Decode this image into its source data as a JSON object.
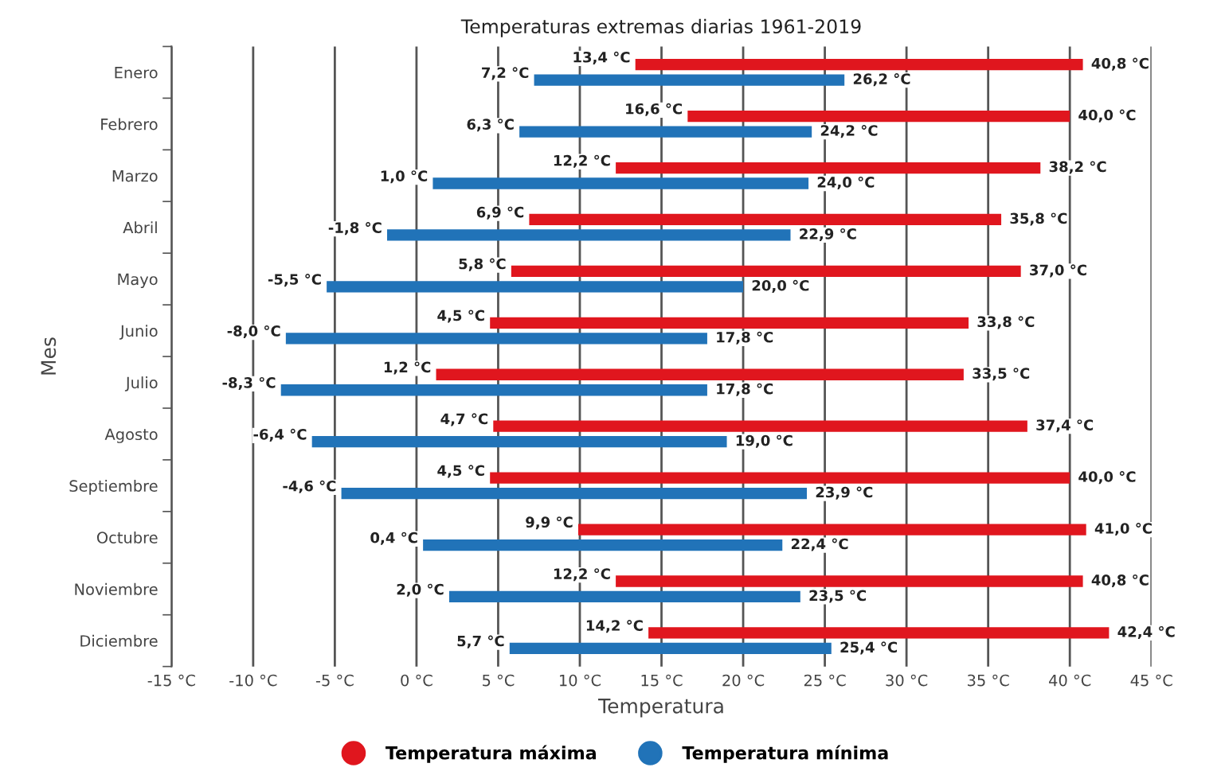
{
  "chart_data": {
    "type": "bar",
    "orientation": "horizontal",
    "title": "Temperaturas extremas diarias 1961-2019",
    "xlabel": "Temperatura",
    "ylabel": "Mes",
    "categories": [
      "Enero",
      "Febrero",
      "Marzo",
      "Abril",
      "Mayo",
      "Junio",
      "Julio",
      "Agosto",
      "Septiembre",
      "Octubre",
      "Noviembre",
      "Diciembre"
    ],
    "series": [
      {
        "name": "Temperatura máxima",
        "color": "#e0161e",
        "base": [
          13.4,
          16.6,
          12.2,
          6.9,
          5.8,
          4.5,
          1.2,
          4.7,
          4.5,
          9.9,
          12.2,
          14.2
        ],
        "values": [
          27.4,
          23.4,
          26.0,
          28.9,
          31.2,
          29.3,
          32.3,
          32.7,
          35.5,
          31.1,
          28.6,
          28.2
        ],
        "value_labels": [
          "40,8 °C",
          "40,0 °C",
          "38,2 °C",
          "35,8 °C",
          "37,0 °C",
          "33,8 °C",
          "33,5 °C",
          "37,4 °C",
          "40,0 °C",
          "41,0 °C",
          "40,8 °C",
          "42,4 °C"
        ]
      },
      {
        "name": "Temperatura mínima",
        "color": "#2173b8",
        "base": [
          7.2,
          6.3,
          1.0,
          -1.8,
          -5.5,
          -8.0,
          -8.3,
          -6.4,
          -4.6,
          0.4,
          2.0,
          5.7
        ],
        "values": [
          19.0,
          17.9,
          23.0,
          24.7,
          25.5,
          25.8,
          26.1,
          25.4,
          28.5,
          22.0,
          21.5,
          19.7
        ],
        "value_labels": [
          "26,2 °C",
          "24,2 °C",
          "24,0 °C",
          "22,9 °C",
          "20,0 °C",
          "17,8 °C",
          "17,8 °C",
          "19,0 °C",
          "23,9 °C",
          "22,4 °C",
          "23,5 °C",
          "25,4 °C"
        ]
      }
    ],
    "annotations": [
      {
        "text": "13,4 °C",
        "x": 13.4,
        "y": "Enero"
      },
      {
        "text": "16,6 °C",
        "x": 16.6,
        "y": "Febrero"
      },
      {
        "text": "12,2 °C",
        "x": 12.2,
        "y": "Marzo"
      },
      {
        "text": "6,9 °C",
        "x": 6.9,
        "y": "Abril"
      },
      {
        "text": "5,8 °C",
        "x": 5.8,
        "y": "Mayo"
      },
      {
        "text": "4,5 °C",
        "x": 4.5,
        "y": "Junio"
      },
      {
        "text": "1,2 °C",
        "x": 1.2,
        "y": "Julio"
      },
      {
        "text": "4,7 °C",
        "x": 4.7,
        "y": "Agosto"
      },
      {
        "text": "4,5 °C",
        "x": 4.5,
        "y": "Septiembre"
      },
      {
        "text": "9,9 °C",
        "x": 9.9,
        "y": "Octubre"
      },
      {
        "text": "12,2 °C",
        "x": 12.2,
        "y": "Noviembre"
      },
      {
        "text": "14,2 °C",
        "x": 14.2,
        "y": "Diciembre"
      },
      {
        "text": "7,2 °C",
        "x": 7.2,
        "y": "Enero"
      },
      {
        "text": "6,3 °C",
        "x": 6.3,
        "y": "Febrero"
      },
      {
        "text": "1,0 °C",
        "x": 1.0,
        "y": "Marzo"
      },
      {
        "text": "-1,8 °C",
        "x": -1.8,
        "y": "Abril"
      },
      {
        "text": "-5,5 °C",
        "x": -5.5,
        "y": "Mayo"
      },
      {
        "text": "-8,0 °C",
        "x": -8.0,
        "y": "Junio"
      },
      {
        "text": "-8,3 °C",
        "x": -8.3,
        "y": "Julio"
      },
      {
        "text": "-6,4 °C",
        "x": -6.4,
        "y": "Agosto"
      },
      {
        "text": "-4,6 °C",
        "x": -4.6,
        "y": "Septiembre"
      },
      {
        "text": "0,4 °C",
        "x": 0.4,
        "y": "Octubre"
      },
      {
        "text": "2,0 °C",
        "x": 2.0,
        "y": "Noviembre"
      },
      {
        "text": "5,7 °C",
        "x": 5.7,
        "y": "Diciembre"
      }
    ],
    "xlim": [
      -15,
      45
    ],
    "xticks": [
      {
        "value": -15,
        "label": "-15 °C"
      },
      {
        "value": -10,
        "label": "-10 °C"
      },
      {
        "value": -5,
        "label": "-5 °C"
      },
      {
        "value": 0,
        "label": "0 °C"
      },
      {
        "value": 5,
        "label": "5 °C"
      },
      {
        "value": 10,
        "label": "10 °C"
      },
      {
        "value": 15,
        "label": "15 °C"
      },
      {
        "value": 20,
        "label": "20 °C"
      },
      {
        "value": 25,
        "label": "25 °C"
      },
      {
        "value": 30,
        "label": "30 °C"
      },
      {
        "value": 35,
        "label": "35 °C"
      },
      {
        "value": 40,
        "label": "40 °C"
      },
      {
        "value": 45,
        "label": "45 °C"
      }
    ],
    "grid": "x",
    "legend": "bottom"
  }
}
